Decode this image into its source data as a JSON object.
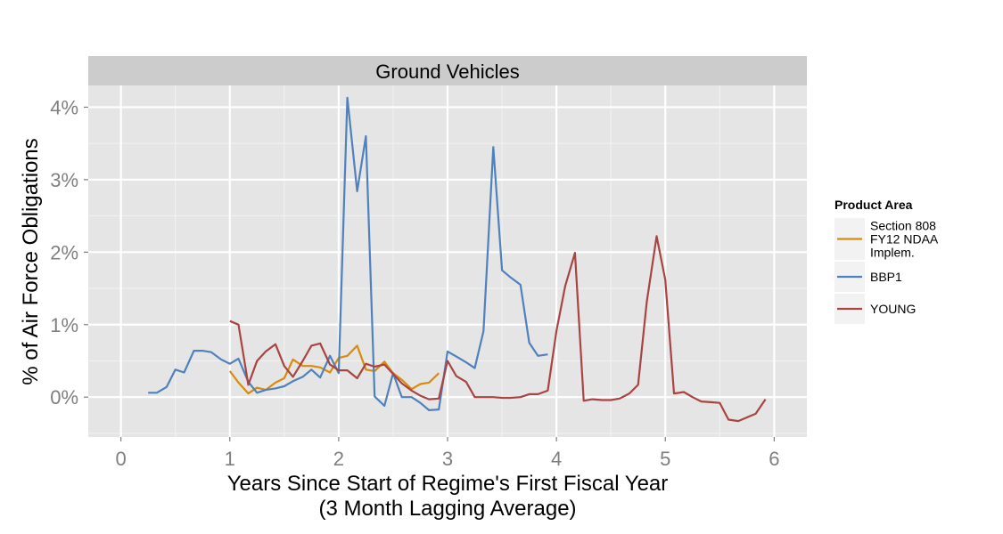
{
  "chart_data": {
    "type": "line",
    "title": "",
    "facet_label": "Ground Vehicles",
    "xlabel_line1": "Years Since Start of Regime's First Fiscal Year",
    "xlabel_line2": "(3 Month Lagging Average)",
    "ylabel": "% of Air Force Obligations",
    "xlim": [
      -0.3,
      6.3
    ],
    "ylim": [
      -0.55,
      4.3
    ],
    "x_ticks": [
      0,
      1,
      2,
      3,
      4,
      5,
      6
    ],
    "x_tick_labels": [
      "0",
      "1",
      "2",
      "3",
      "4",
      "5",
      "6"
    ],
    "y_ticks": [
      0,
      1,
      2,
      3,
      4
    ],
    "y_tick_labels": [
      "0%",
      "1%",
      "2%",
      "3%",
      "4%"
    ],
    "grid": true,
    "legend_title": "Product Area",
    "legend_position": "right",
    "series": [
      {
        "name_lines": [
          "Section 808",
          "FY12 NDAA",
          "Implem."
        ],
        "color": "#d98b0b",
        "x": [
          1.0,
          1.08,
          1.17,
          1.25,
          1.33,
          1.42,
          1.5,
          1.58,
          1.67,
          1.75,
          1.83,
          1.92,
          2.0,
          2.08,
          2.17,
          2.25,
          2.33,
          2.42,
          2.5,
          2.58,
          2.67,
          2.75,
          2.83,
          2.92
        ],
        "y": [
          0.36,
          0.2,
          0.05,
          0.13,
          0.1,
          0.2,
          0.26,
          0.52,
          0.43,
          0.43,
          0.41,
          0.34,
          0.54,
          0.57,
          0.71,
          0.38,
          0.36,
          0.49,
          0.33,
          0.24,
          0.11,
          0.18,
          0.2,
          0.33
        ]
      },
      {
        "name_lines": [
          "BBP1"
        ],
        "color": "#4f81bd",
        "x": [
          0.25,
          0.33,
          0.42,
          0.5,
          0.58,
          0.67,
          0.75,
          0.83,
          0.92,
          1.0,
          1.08,
          1.17,
          1.25,
          1.33,
          1.42,
          1.5,
          1.58,
          1.67,
          1.75,
          1.83,
          1.92,
          2.0,
          2.08,
          2.17,
          2.25,
          2.33,
          2.42,
          2.5,
          2.58,
          2.67,
          2.75,
          2.83,
          2.92,
          3.0,
          3.08,
          3.17,
          3.25,
          3.33,
          3.42,
          3.5,
          3.58,
          3.67,
          3.75,
          3.83,
          3.92
        ],
        "y": [
          0.06,
          0.06,
          0.14,
          0.38,
          0.34,
          0.64,
          0.64,
          0.62,
          0.52,
          0.46,
          0.53,
          0.21,
          0.06,
          0.1,
          0.12,
          0.15,
          0.22,
          0.28,
          0.38,
          0.27,
          0.57,
          0.33,
          4.13,
          2.84,
          3.6,
          0.01,
          -0.12,
          0.33,
          0.0,
          0.0,
          -0.08,
          -0.18,
          -0.17,
          0.63,
          0.56,
          0.48,
          0.4,
          0.91,
          3.45,
          1.75,
          1.65,
          1.55,
          0.75,
          0.57,
          0.59
        ]
      },
      {
        "name_lines": [
          "YOUNG"
        ],
        "color": "#a94442",
        "x": [
          1.0,
          1.08,
          1.17,
          1.25,
          1.33,
          1.42,
          1.5,
          1.58,
          1.67,
          1.75,
          1.83,
          1.92,
          2.0,
          2.08,
          2.17,
          2.25,
          2.33,
          2.42,
          2.5,
          2.58,
          2.67,
          2.75,
          2.83,
          2.92,
          3.0,
          3.08,
          3.17,
          3.25,
          3.33,
          3.42,
          3.5,
          3.58,
          3.67,
          3.75,
          3.83,
          3.92,
          4.0,
          4.08,
          4.17,
          4.25,
          4.33,
          4.42,
          4.5,
          4.58,
          4.67,
          4.75,
          4.83,
          4.92,
          5.0,
          5.08,
          5.17,
          5.25,
          5.33,
          5.42,
          5.5,
          5.58,
          5.67,
          5.75,
          5.83,
          5.92
        ],
        "y": [
          1.05,
          1.0,
          0.17,
          0.5,
          0.63,
          0.73,
          0.43,
          0.28,
          0.5,
          0.71,
          0.74,
          0.45,
          0.37,
          0.37,
          0.26,
          0.46,
          0.42,
          0.45,
          0.32,
          0.19,
          0.09,
          0.02,
          -0.03,
          -0.02,
          0.5,
          0.29,
          0.21,
          0.0,
          0.0,
          0.0,
          -0.01,
          -0.01,
          0.0,
          0.04,
          0.04,
          0.09,
          0.91,
          1.53,
          1.99,
          -0.05,
          -0.03,
          -0.04,
          -0.04,
          -0.02,
          0.05,
          0.17,
          1.32,
          2.22,
          1.62,
          0.05,
          0.07,
          0.0,
          -0.06,
          -0.07,
          -0.08,
          -0.31,
          -0.33,
          -0.28,
          -0.23,
          -0.03
        ]
      }
    ]
  }
}
